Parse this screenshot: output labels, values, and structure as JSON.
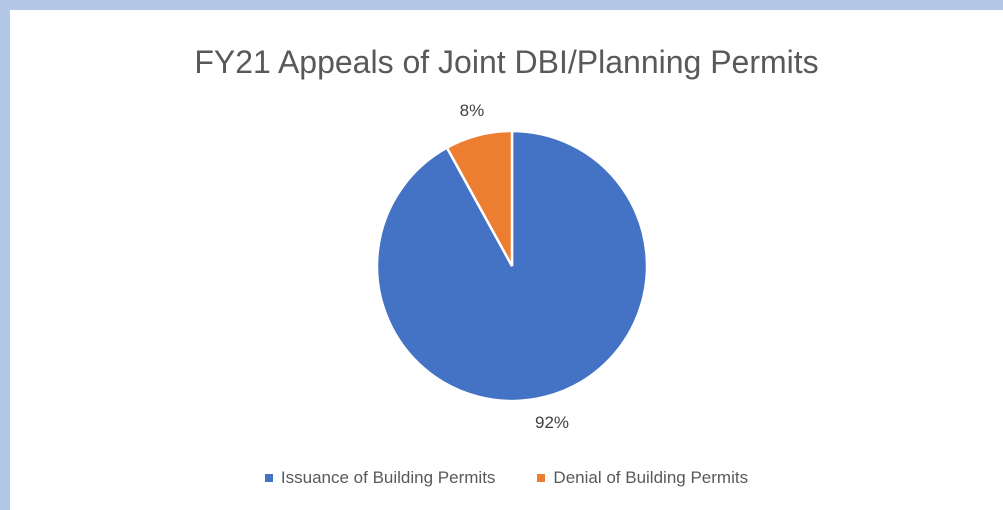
{
  "chart_data": {
    "type": "pie",
    "title": "FY21 Appeals of Joint DBI/Planning Permits",
    "slices": [
      {
        "label": "Issuance of Building Permits",
        "value": 92,
        "data_label": "92%",
        "color": "#4472c4"
      },
      {
        "label": "Denial of Building Permits",
        "value": 8,
        "data_label": "8%",
        "color": "#ed7d31"
      }
    ],
    "legend_position": "bottom"
  }
}
